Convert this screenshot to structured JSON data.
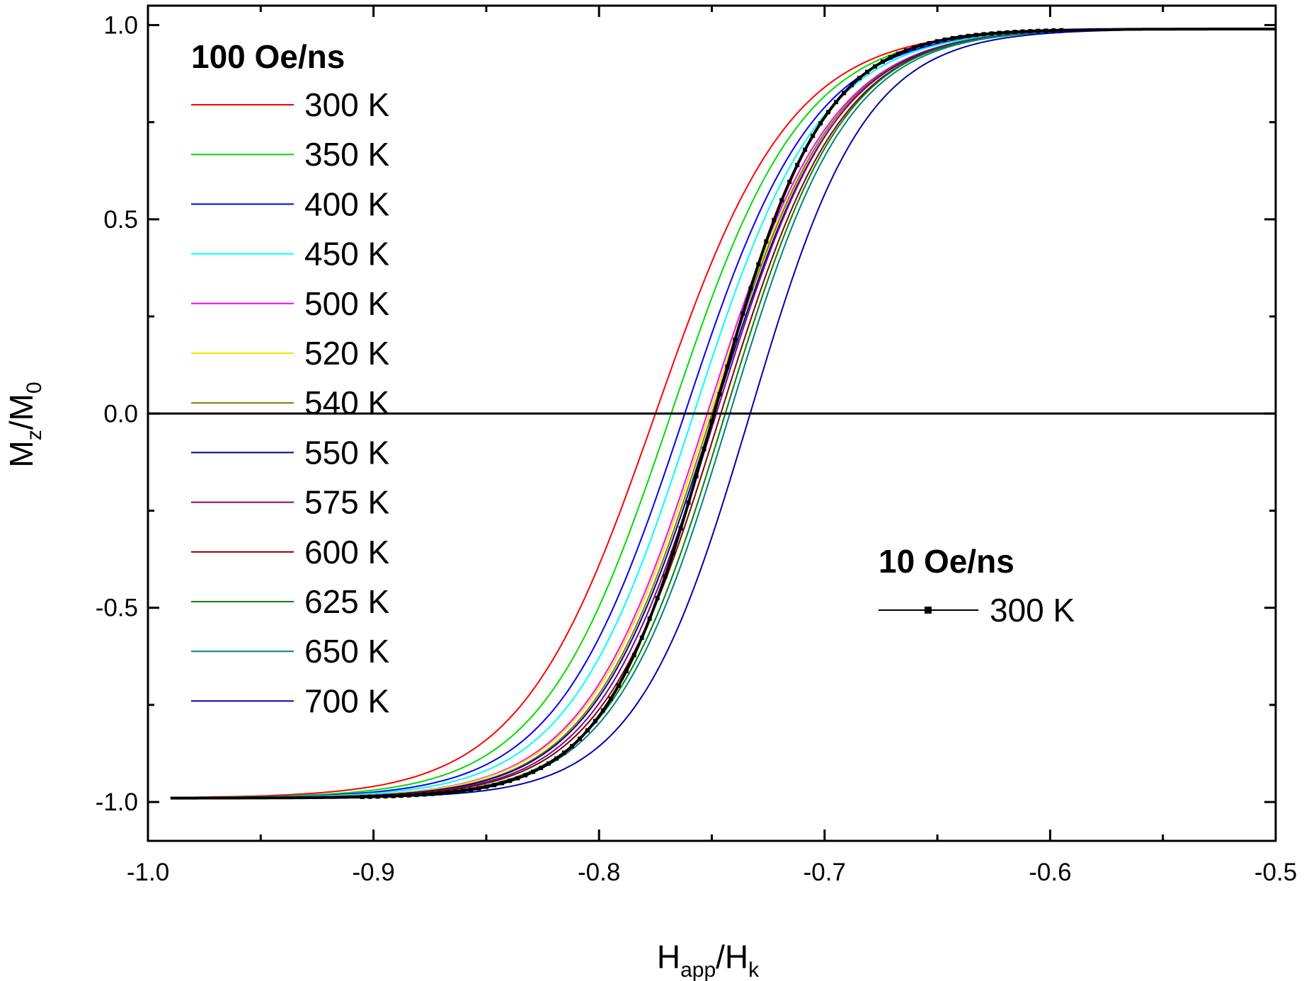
{
  "chart_data": {
    "type": "line",
    "title": "",
    "xlabel": {
      "main": "H",
      "sub1": "app",
      "sep": "/H",
      "sub2": "k"
    },
    "ylabel": {
      "main": "M",
      "sub1": "z",
      "sep": "/M",
      "sub2": "0"
    },
    "xlim": [
      -1.0,
      -0.5
    ],
    "ylim": [
      -1.1,
      1.05
    ],
    "x_ticks": [
      -1.0,
      -0.9,
      -0.8,
      -0.7,
      -0.6,
      -0.5
    ],
    "x_tick_labels": [
      "-1.0",
      "-0.9",
      "-0.8",
      "-0.7",
      "-0.6",
      "-0.5"
    ],
    "y_ticks": [
      -1.0,
      -0.5,
      0.0,
      0.5,
      1.0
    ],
    "y_tick_labels": [
      "-1.0",
      "-0.5",
      "0.0",
      "0.5",
      "1.0"
    ],
    "zero_line": true,
    "grid": false,
    "legend_groups": [
      {
        "title": "100 Oe/ns",
        "position": "top-left"
      },
      {
        "title": "10 Oe/ns",
        "position": "center-right"
      }
    ],
    "series": [
      {
        "name": "300 K",
        "group": "100 Oe/ns",
        "color": "#ff0000",
        "x0": -0.775,
        "width": 0.06,
        "x_start": -0.99,
        "x_end": -0.5
      },
      {
        "name": "350 K",
        "group": "100 Oe/ns",
        "color": "#00dd00",
        "x0": -0.768,
        "width": 0.058,
        "x_start": -0.99,
        "x_end": -0.5
      },
      {
        "name": "400 K",
        "group": "100 Oe/ns",
        "color": "#0000ff",
        "x0": -0.762,
        "width": 0.057,
        "x_start": -0.99,
        "x_end": -0.5
      },
      {
        "name": "450 K",
        "group": "100 Oe/ns",
        "color": "#00ffff",
        "x0": -0.758,
        "width": 0.056,
        "x_start": -0.99,
        "x_end": -0.5
      },
      {
        "name": "500 K",
        "group": "100 Oe/ns",
        "color": "#ff00ff",
        "x0": -0.752,
        "width": 0.055,
        "x_start": -0.99,
        "x_end": -0.5
      },
      {
        "name": "520 K",
        "group": "100 Oe/ns",
        "color": "#e8e800",
        "x0": -0.751,
        "width": 0.055,
        "x_start": -0.99,
        "x_end": -0.5
      },
      {
        "name": "540 K",
        "group": "100 Oe/ns",
        "color": "#7f7f00",
        "x0": -0.75,
        "width": 0.054,
        "x_start": -0.99,
        "x_end": -0.5
      },
      {
        "name": "550 K",
        "group": "100 Oe/ns",
        "color": "#000090",
        "x0": -0.749,
        "width": 0.054,
        "x_start": -0.99,
        "x_end": -0.5
      },
      {
        "name": "575 K",
        "group": "100 Oe/ns",
        "color": "#800080",
        "x0": -0.748,
        "width": 0.053,
        "x_start": -0.99,
        "x_end": -0.5
      },
      {
        "name": "600 K",
        "group": "100 Oe/ns",
        "color": "#800000",
        "x0": -0.746,
        "width": 0.053,
        "x_start": -0.99,
        "x_end": -0.5
      },
      {
        "name": "625 K",
        "group": "100 Oe/ns",
        "color": "#008000",
        "x0": -0.744,
        "width": 0.052,
        "x_start": -0.99,
        "x_end": -0.5
      },
      {
        "name": "650 K",
        "group": "100 Oe/ns",
        "color": "#008080",
        "x0": -0.742,
        "width": 0.052,
        "x_start": -0.99,
        "x_end": -0.5
      },
      {
        "name": "700 K",
        "group": "100 Oe/ns",
        "color": "#0000b0",
        "x0": -0.733,
        "width": 0.051,
        "x_start": -0.99,
        "x_end": -0.5
      },
      {
        "name": "300 K",
        "group": "10 Oe/ns",
        "color": "#000000",
        "x0": -0.749,
        "width": 0.048,
        "x_start": -0.99,
        "x_end": -0.5,
        "marker": "square"
      }
    ]
  }
}
